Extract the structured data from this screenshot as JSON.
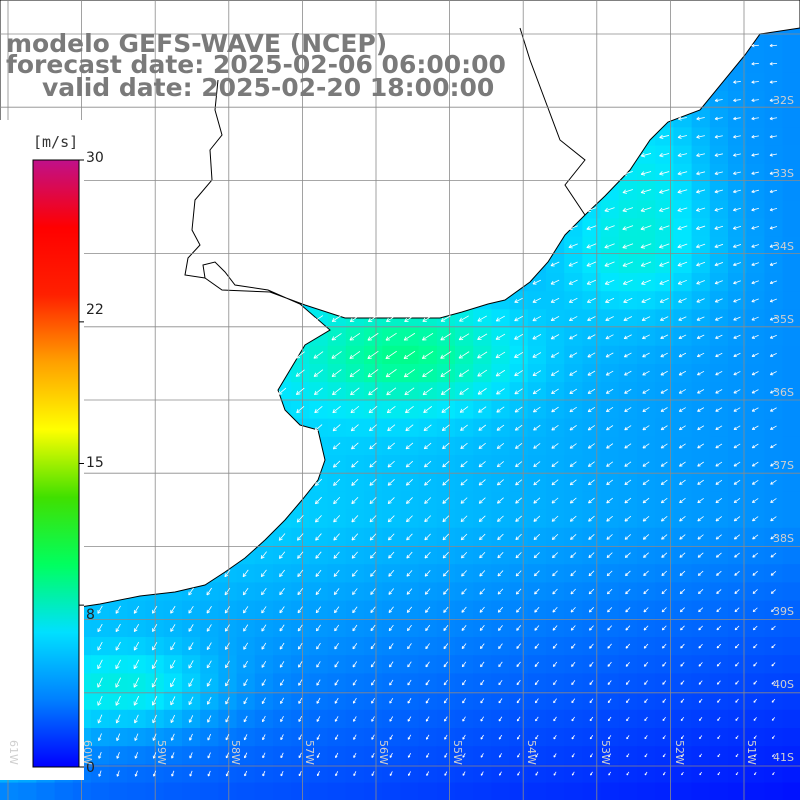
{
  "title": {
    "line1": "modelo GEFS-WAVE (NCEP)",
    "line2": "forecast date: 2025-02-06 06:00:00",
    "line3": "valid date: 2025-02-20 18:00:00"
  },
  "colorbar": {
    "unit": "[m/s]",
    "ticks": [
      "30",
      "22",
      "15",
      "8",
      "0"
    ],
    "tick_values": [
      30,
      22,
      15,
      8,
      0
    ],
    "range": [
      0,
      30
    ],
    "colors": [
      "#0000ff",
      "#0080ff",
      "#00e0ff",
      "#00ff60",
      "#40e000",
      "#ffff00",
      "#ffa000",
      "#ff2000",
      "#ff0000",
      "#c0108a"
    ]
  },
  "map": {
    "latitude_labels": [
      "32S",
      "33S",
      "34S",
      "35S",
      "36S",
      "37S",
      "38S",
      "39S",
      "40S",
      "41S"
    ],
    "longitude_labels": [
      "61W",
      "60W",
      "59W",
      "58W",
      "57W",
      "56W",
      "55W",
      "54W",
      "53W",
      "52W",
      "51W"
    ],
    "land_color": "#ffffff",
    "grid_color": "#888888",
    "arrow_color": "#ffffff"
  }
}
